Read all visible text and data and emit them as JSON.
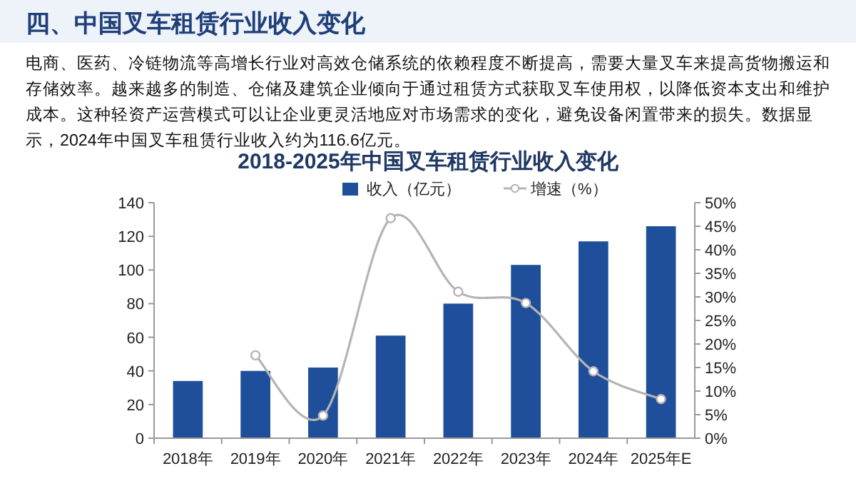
{
  "chart_data": {
    "type": "bar",
    "title": "2018-2025年中国叉车租赁行业收入变化",
    "annotations": [
      "四、中国叉车租赁行业收入变化",
      "电商、医药、冷链物流等高增长行业对高效仓储系统的依赖程度不断提高，需要大量叉车来提高货物搬运和存储效率。越来越多的制造、仓储及建筑企业倾向于通过租赁方式获取叉车使用权，以降低资本支出和维护成本。这种轻资产运营模式可以让企业更灵活地应对市场需求的变化，避免设备闲置带来的损失。数据显示，2024年中国叉车租赁行业收入约为116.6亿元。"
    ],
    "categories": [
      "2018年",
      "2019年",
      "2020年",
      "2021年",
      "2022年",
      "2023年",
      "2024年",
      "2025年E"
    ],
    "series": [
      {
        "name": "收入（亿元）",
        "color": "#1f4e9a",
        "values": [
          34,
          40,
          42,
          61,
          80,
          103,
          117,
          126
        ]
      },
      {
        "name": "增速（%）",
        "type": "line",
        "axis": "y2",
        "color": "#b4b4b4",
        "marker": "circle",
        "values": [
          null,
          17.6,
          4.8,
          46.7,
          31.1,
          28.7,
          14.2,
          8.3
        ]
      }
    ],
    "ylim": [
      0,
      140
    ],
    "yticks": [
      0,
      20,
      40,
      60,
      80,
      100,
      120,
      140
    ],
    "y2lim": [
      0,
      50
    ],
    "y2ticks": [
      {
        "value": 0,
        "label": "0%"
      },
      {
        "value": 5,
        "label": "5%"
      },
      {
        "value": 10,
        "label": "10%"
      },
      {
        "value": 15,
        "label": "15%"
      },
      {
        "value": 20,
        "label": "20%"
      },
      {
        "value": 25,
        "label": "25%"
      },
      {
        "value": 30,
        "label": "30%"
      },
      {
        "value": 35,
        "label": "35%"
      },
      {
        "value": 40,
        "label": "40%"
      },
      {
        "value": 45,
        "label": "45%"
      },
      {
        "value": 50,
        "label": "50%"
      }
    ],
    "grid": false,
    "legend": "top"
  }
}
